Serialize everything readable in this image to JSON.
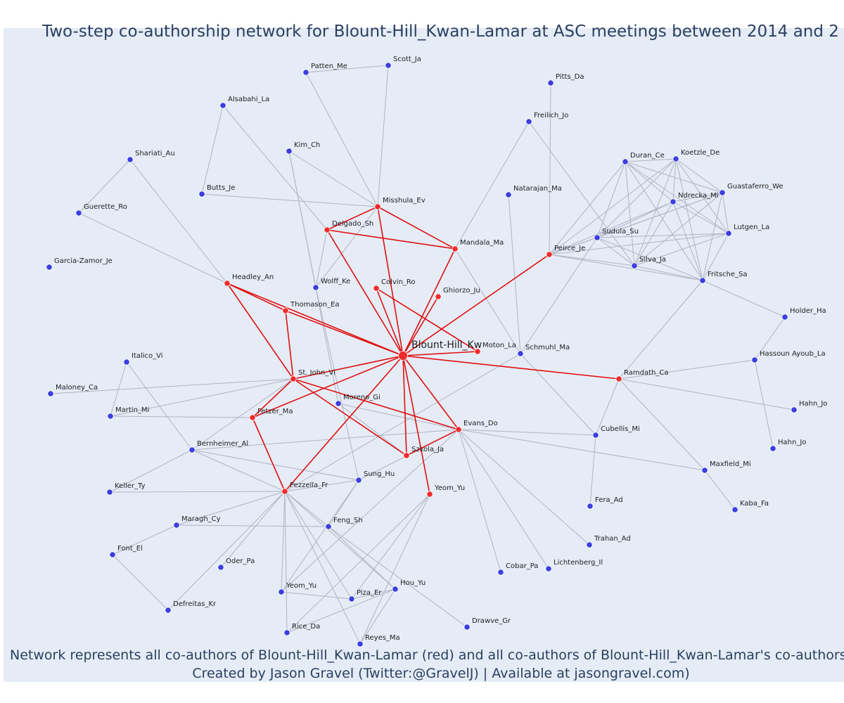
{
  "header": {
    "title": "Two-step co-authorship network for Blount-Hill_Kwan-Lamar at ASC meetings between 2014 and 2"
  },
  "nodes": [
    {
      "label": "Blount-Hill_Kw",
      "color": "#ef2b2b"
    },
    {
      "label": "Misshula_Ev",
      "color": "#ef2b2b"
    },
    {
      "label": "Delgado_Sh",
      "color": "#ef2b2b"
    },
    {
      "label": "Mandala_Ma",
      "color": "#ef2b2b"
    },
    {
      "label": "Peirce_Je",
      "color": "#ef2b2b"
    },
    {
      "label": "Headley_An",
      "color": "#ef2b2b"
    },
    {
      "label": "Colvin_Ro",
      "color": "#ef2b2b"
    },
    {
      "label": "Ghiorzo_Ju",
      "color": "#ef2b2b"
    },
    {
      "label": "Thomason_Ea",
      "color": "#ef2b2b"
    },
    {
      "label": "Moton_La",
      "color": "#ef2b2b"
    },
    {
      "label": "St. John_Vi",
      "color": "#ef2b2b"
    },
    {
      "label": "Ramdath_Ca",
      "color": "#ef2b2b"
    },
    {
      "label": "Fetzer_Ma",
      "color": "#ef2b2b"
    },
    {
      "label": "Evans_Do",
      "color": "#ef2b2b"
    },
    {
      "label": "Szkola_Ja",
      "color": "#ef2b2b"
    },
    {
      "label": "Pezzella_Fr",
      "color": "#ef2b2b"
    },
    {
      "label": "Yeom_Yu",
      "color": "#ef2b2b"
    },
    {
      "label": "Patten_Me",
      "color": "#3d3de0"
    },
    {
      "label": "Scott_Ja",
      "color": "#3d3de0"
    },
    {
      "label": "Pitts_Da",
      "color": "#3d3de0"
    },
    {
      "label": "Alsabahi_La",
      "color": "#3d3de0"
    },
    {
      "label": "Freilich_Jo",
      "color": "#3d3de0"
    },
    {
      "label": "Shariati_Au",
      "color": "#3d3de0"
    },
    {
      "label": "Kim_Ch",
      "color": "#3d3de0"
    },
    {
      "label": "Duran_Ce",
      "color": "#3d3de0"
    },
    {
      "label": "Koetzle_De",
      "color": "#3d3de0"
    },
    {
      "label": "Natarajan_Ma",
      "color": "#3d3de0"
    },
    {
      "label": "Butts_Je",
      "color": "#3d3de0"
    },
    {
      "label": "Guerette_Ro",
      "color": "#3d3de0"
    },
    {
      "label": "Guastaferro_We",
      "color": "#3d3de0"
    },
    {
      "label": "Ndrecka_Mi",
      "color": "#3d3de0"
    },
    {
      "label": "Lutgen_La",
      "color": "#3d3de0"
    },
    {
      "label": "Sudula_Su",
      "color": "#3d3de0"
    },
    {
      "label": "Silva_Ja",
      "color": "#3d3de0"
    },
    {
      "label": "Fritsche_Sa",
      "color": "#3d3de0"
    },
    {
      "label": "Garcia-Zamor_Je",
      "color": "#3d3de0"
    },
    {
      "label": "Wolff_Ke",
      "color": "#3d3de0"
    },
    {
      "label": "Holder_Ha",
      "color": "#3d3de0"
    },
    {
      "label": "Schmuhl_Ma",
      "color": "#3d3de0"
    },
    {
      "label": "Hassoun Ayoub_La",
      "color": "#3d3de0"
    },
    {
      "label": "Italico_Vi",
      "color": "#3d3de0"
    },
    {
      "label": "Maloney_Ca",
      "color": "#3d3de0"
    },
    {
      "label": "Moreno_Gi",
      "color": "#3d3de0"
    },
    {
      "label": "Martin_Mi",
      "color": "#3d3de0"
    },
    {
      "label": "Hahn_Jo",
      "color": "#3d3de0"
    },
    {
      "label": "Cubellis_Mi",
      "color": "#3d3de0"
    },
    {
      "label": "Hahn_Jo",
      "color": "#3d3de0"
    },
    {
      "label": "Bernheimer_Al",
      "color": "#3d3de0"
    },
    {
      "label": "Maxfield_Mi",
      "color": "#3d3de0"
    },
    {
      "label": "Sung_Hu",
      "color": "#3d3de0"
    },
    {
      "label": "Keller_Ty",
      "color": "#3d3de0"
    },
    {
      "label": "Fera_Ad",
      "color": "#3d3de0"
    },
    {
      "label": "Maragh_Cy",
      "color": "#3d3de0"
    },
    {
      "label": "Feng_Sh",
      "color": "#3d3de0"
    },
    {
      "label": "Kaba_Fa",
      "color": "#3d3de0"
    },
    {
      "label": "Trahan_Ad",
      "color": "#3d3de0"
    },
    {
      "label": "Font_El",
      "color": "#3d3de0"
    },
    {
      "label": "Oder_Pa",
      "color": "#3d3de0"
    },
    {
      "label": "Cobar_Pa",
      "color": "#3d3de0"
    },
    {
      "label": "Lichtenberg_Il",
      "color": "#3d3de0"
    },
    {
      "label": "Hou_Yu",
      "color": "#3d3de0"
    },
    {
      "label": "Yeom_Yu",
      "color": "#3d3de0"
    },
    {
      "label": "Piza_Er",
      "color": "#3d3de0"
    },
    {
      "label": "Defreitas_Kr",
      "color": "#3d3de0"
    },
    {
      "label": "Drawve_Gr",
      "color": "#3d3de0"
    },
    {
      "label": "Rice_Da",
      "color": "#3d3de0"
    },
    {
      "label": "Reyes_Ma",
      "color": "#3d3de0"
    }
  ],
  "footer": {
    "note": "Network represents all co-authors of Blount-Hill_Kwan-Lamar (red) and all co-authors of Blount-Hill_Kwan-Lamar's co-authors (b",
    "credit": "Created by Jason Gravel (Twitter:@GravelJ) | Available at jasongravel.com)"
  }
}
